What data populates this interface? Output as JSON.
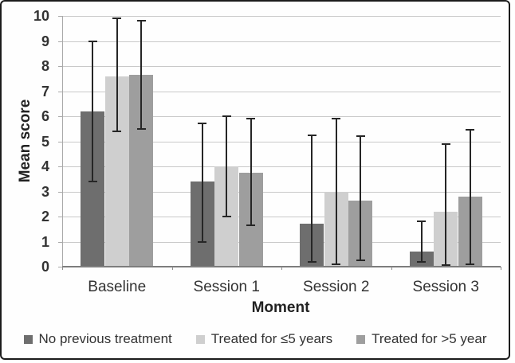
{
  "chart_data": {
    "type": "bar",
    "title": "",
    "xlabel": "Moment",
    "ylabel": "Mean score",
    "categories": [
      "Baseline",
      "Session 1",
      "Session 2",
      "Session 3"
    ],
    "series": [
      {
        "name": "No previous treatment",
        "color": "#6e6e6e",
        "values": [
          6.2,
          3.4,
          1.7,
          0.6
        ],
        "error_low": [
          3.4,
          1.0,
          0.2,
          0.2
        ],
        "error_high": [
          9.0,
          5.7,
          5.25,
          1.8
        ]
      },
      {
        "name": "Treated for ≤5 years",
        "color": "#cfcfcf",
        "values": [
          7.6,
          4.0,
          3.0,
          2.2
        ],
        "error_low": [
          5.4,
          2.0,
          0.1,
          0.05
        ],
        "error_high": [
          9.9,
          6.0,
          5.9,
          4.9
        ]
      },
      {
        "name": "Treated for >5 year",
        "color": "#9e9e9e",
        "values": [
          7.65,
          3.75,
          2.65,
          2.8
        ],
        "error_low": [
          5.5,
          1.65,
          0.25,
          0.1
        ],
        "error_high": [
          9.8,
          5.9,
          5.2,
          5.45
        ]
      }
    ],
    "ylim": [
      0,
      10
    ],
    "ytick_step": 1,
    "grid": true,
    "legend_position": "bottom",
    "error_bars": true
  }
}
